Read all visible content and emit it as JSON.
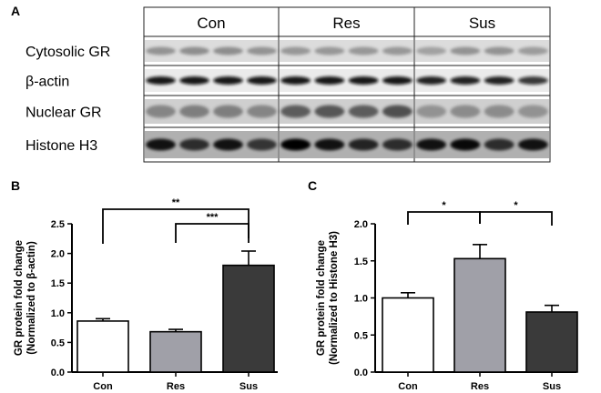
{
  "panels": {
    "a": "A",
    "b": "B",
    "c": "C"
  },
  "blot": {
    "groups": [
      "Con",
      "Res",
      "Sus"
    ],
    "rows": [
      "Cytosolic GR",
      "β-actin",
      "Nuclear GR",
      "Histone H3"
    ]
  },
  "chart_data": [
    {
      "type": "bar",
      "categories": [
        "Con",
        "Res",
        "Sus"
      ],
      "values": [
        0.86,
        0.68,
        1.8
      ],
      "errors": [
        0.04,
        0.04,
        0.24
      ],
      "bar_colors": [
        "#ffffff",
        "#a0a0a8",
        "#3a3a3a"
      ],
      "title": "",
      "xlabel": "",
      "ylabel": "GR protein fold change",
      "ylabel2": "(Normalized to β-actin)",
      "ylim": [
        0,
        2.5
      ],
      "yticks": [
        "0.0",
        "0.5",
        "1.0",
        "1.5",
        "2.0",
        "2.5"
      ],
      "significance": [
        {
          "from": "Con",
          "to": "Sus",
          "label": "**"
        },
        {
          "from": "Res",
          "to": "Sus",
          "label": "***"
        }
      ]
    },
    {
      "type": "bar",
      "categories": [
        "Con",
        "Res",
        "Sus"
      ],
      "values": [
        1.0,
        1.53,
        0.81
      ],
      "errors": [
        0.07,
        0.19,
        0.09
      ],
      "bar_colors": [
        "#ffffff",
        "#a0a0a8",
        "#3a3a3a"
      ],
      "title": "",
      "xlabel": "",
      "ylabel": "GR protein fold change",
      "ylabel2": "(Normalized to Histone H3)",
      "ylim": [
        0,
        2.0
      ],
      "yticks": [
        "0.0",
        "0.5",
        "1.0",
        "1.5",
        "2.0"
      ],
      "significance": [
        {
          "from": "Con",
          "to": "Res",
          "label": "*"
        },
        {
          "from": "Res",
          "to": "Sus",
          "label": "*"
        }
      ]
    }
  ]
}
